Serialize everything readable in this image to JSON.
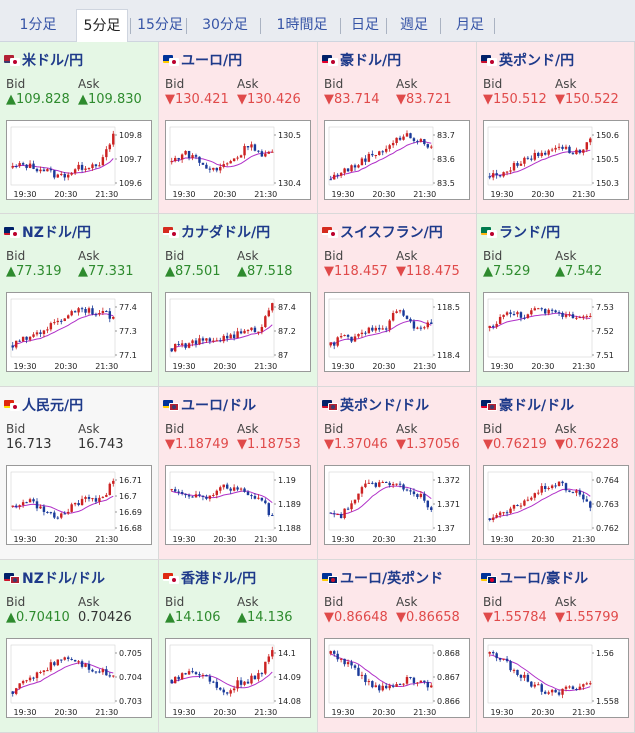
{
  "tabs": [
    "1分足",
    "5分足",
    "15分足",
    "30分足",
    "1時間足",
    "日足",
    "週足",
    "月足"
  ],
  "active_tab": 1,
  "bid_label": "Bid",
  "ask_label": "Ask",
  "x_ticks": [
    "19:30",
    "20:30",
    "21:30"
  ],
  "cells": [
    {
      "name": "米ドル/円",
      "flag": "us-jp-flag-icon",
      "dir": "up",
      "bid": "▲109.828",
      "ask": "▲109.830",
      "yticks": [
        "109.8",
        "109.7",
        "109.6"
      ],
      "trend": [
        0.3,
        0.35,
        0.3,
        0.25,
        0.15,
        0.2,
        0.3,
        0.35,
        0.4,
        0.85
      ]
    },
    {
      "name": "ユーロ/円",
      "flag": "eu-jp-flag-icon",
      "dir": "down",
      "bid": "▼130.421",
      "ask": "▼130.426",
      "yticks": [
        "130.5",
        "130.4"
      ],
      "trend": [
        0.4,
        0.55,
        0.5,
        0.3,
        0.25,
        0.4,
        0.5,
        0.75,
        0.5,
        0.55
      ]
    },
    {
      "name": "豪ドル/円",
      "flag": "au-jp-flag-icon",
      "dir": "down",
      "bid": "▼83.714",
      "ask": "▼83.721",
      "yticks": [
        "83.7",
        "83.6",
        "83.5"
      ],
      "trend": [
        0.1,
        0.25,
        0.3,
        0.45,
        0.55,
        0.65,
        0.8,
        0.85,
        0.75,
        0.65
      ]
    },
    {
      "name": "英ポンド/円",
      "flag": "gb-jp-flag-icon",
      "dir": "down",
      "bid": "▼150.512",
      "ask": "▼150.522",
      "yticks": [
        "150.6",
        "150.5",
        "150.3"
      ],
      "trend": [
        0.15,
        0.2,
        0.3,
        0.45,
        0.5,
        0.55,
        0.7,
        0.6,
        0.55,
        0.8
      ]
    },
    {
      "name": "NZドル/円",
      "flag": "nz-jp-flag-icon",
      "dir": "up",
      "bid": "▲77.319",
      "ask": "▲77.331",
      "yticks": [
        "77.4",
        "77.3",
        "77.1"
      ],
      "trend": [
        0.2,
        0.3,
        0.4,
        0.5,
        0.6,
        0.75,
        0.85,
        0.8,
        0.75,
        0.7
      ]
    },
    {
      "name": "カナダドル/円",
      "flag": "ca-jp-flag-icon",
      "dir": "up",
      "bid": "▲87.501",
      "ask": "▲87.518",
      "yticks": [
        "87.4",
        "87.2",
        "87"
      ],
      "trend": [
        0.15,
        0.2,
        0.25,
        0.28,
        0.3,
        0.35,
        0.4,
        0.45,
        0.5,
        0.95
      ]
    },
    {
      "name": "スイスフラン/円",
      "flag": "ch-jp-flag-icon",
      "dir": "down",
      "bid": "▼118.457",
      "ask": "▼118.475",
      "yticks": [
        "118.5",
        "118.4"
      ],
      "trend": [
        0.2,
        0.35,
        0.3,
        0.4,
        0.55,
        0.5,
        0.85,
        0.6,
        0.45,
        0.6
      ]
    },
    {
      "name": "ランド/円",
      "flag": "za-jp-flag-icon",
      "dir": "up",
      "bid": "▲7.529",
      "ask": "▲7.542",
      "yticks": [
        "7.53",
        "7.52",
        "7.51"
      ],
      "trend": [
        0.5,
        0.7,
        0.75,
        0.72,
        0.8,
        0.78,
        0.75,
        0.72,
        0.7,
        0.75
      ]
    },
    {
      "name": "人民元/円",
      "flag": "cn-jp-flag-icon",
      "dir": "flat",
      "bid": "16.713",
      "ask": "16.743",
      "yticks": [
        "16.71",
        "16.7",
        "16.69",
        "16.68"
      ],
      "trend": [
        0.4,
        0.5,
        0.45,
        0.3,
        0.2,
        0.35,
        0.5,
        0.55,
        0.5,
        0.9
      ]
    },
    {
      "name": "ユーロ/ドル",
      "flag": "eu-us-flag-icon",
      "dir": "down",
      "bid": "▼1.18749",
      "ask": "▼1.18753",
      "yticks": [
        "1.19",
        "1.189",
        "1.188"
      ],
      "trend": [
        0.7,
        0.65,
        0.6,
        0.55,
        0.7,
        0.75,
        0.7,
        0.6,
        0.55,
        0.2
      ]
    },
    {
      "name": "英ポンド/ドル",
      "flag": "gb-us-flag-icon",
      "dir": "down",
      "bid": "▼1.37046",
      "ask": "▼1.37056",
      "yticks": [
        "1.372",
        "1.371",
        "1.37"
      ],
      "trend": [
        0.3,
        0.25,
        0.5,
        0.75,
        0.8,
        0.85,
        0.75,
        0.7,
        0.6,
        0.3
      ]
    },
    {
      "name": "豪ドル/ドル",
      "flag": "au-us-flag-icon",
      "dir": "down",
      "bid": "▼0.76219",
      "ask": "▼0.76228",
      "yticks": [
        "0.764",
        "0.763",
        "0.762"
      ],
      "trend": [
        0.2,
        0.25,
        0.35,
        0.5,
        0.6,
        0.75,
        0.8,
        0.7,
        0.65,
        0.35
      ]
    },
    {
      "name": "NZドル/ドル",
      "flag": "nz-us-flag-icon",
      "dir": "up",
      "bid": "▲0.70410",
      "ask": "0.70426",
      "yticks": [
        "0.705",
        "0.704",
        "0.703"
      ],
      "trend": [
        0.2,
        0.35,
        0.5,
        0.6,
        0.75,
        0.8,
        0.7,
        0.6,
        0.55,
        0.45
      ]
    },
    {
      "name": "香港ドル/円",
      "flag": "hk-jp-flag-icon",
      "dir": "up",
      "bid": "▲14.106",
      "ask": "▲14.136",
      "yticks": [
        "14.1",
        "14.09",
        "14.08"
      ],
      "trend": [
        0.4,
        0.5,
        0.55,
        0.45,
        0.3,
        0.2,
        0.35,
        0.4,
        0.5,
        0.9
      ]
    },
    {
      "name": "ユーロ/英ポンド",
      "flag": "eu-gb-flag-icon",
      "dir": "down",
      "bid": "▼0.86648",
      "ask": "▼0.86658",
      "yticks": [
        "0.868",
        "0.867",
        "0.866"
      ],
      "trend": [
        0.85,
        0.75,
        0.6,
        0.4,
        0.25,
        0.3,
        0.35,
        0.4,
        0.35,
        0.3
      ]
    },
    {
      "name": "ユーロ/豪ドル",
      "flag": "eu-au-flag-icon",
      "dir": "down",
      "bid": "▼1.55784",
      "ask": "▼1.55799",
      "yticks": [
        "1.56",
        "1.558"
      ],
      "trend": [
        0.85,
        0.75,
        0.6,
        0.45,
        0.3,
        0.2,
        0.15,
        0.25,
        0.3,
        0.35
      ]
    }
  ],
  "colors": {
    "up_bg": "#e5f7e5",
    "down_bg": "#fde7ea",
    "up_text": "#2e8b2e",
    "down_text": "#e04a4a",
    "candle_up": "#cc2222",
    "candle_down": "#1a3a9a",
    "ma": "#b030c8"
  }
}
